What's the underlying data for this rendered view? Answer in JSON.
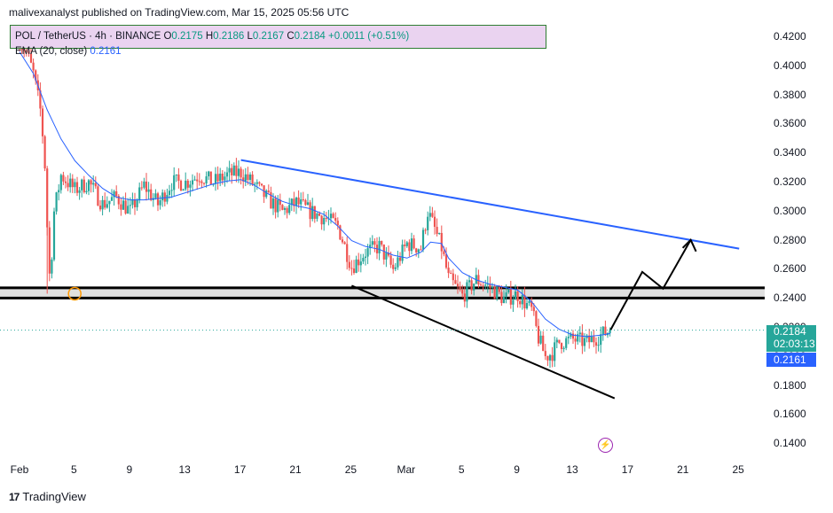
{
  "header": {
    "publisher_text": "malivexanalyst published on TradingView.com, Mar 15, 2025 05:56 UTC"
  },
  "legend": {
    "symbol": "POL / TetherUS · 4h · BINANCE",
    "open_label": "O",
    "open": "0.2175",
    "high_label": "H",
    "high": "0.2186",
    "low_label": "L",
    "low": "0.2167",
    "close_label": "C",
    "close": "0.2184",
    "change": "+0.0011 (+0.51%)",
    "ema_label": "EMA (20, close)",
    "ema_value": "0.2161"
  },
  "price_badge": {
    "price": "0.2184",
    "countdown": "02:03:13"
  },
  "ema_badge": {
    "value": "0.2161"
  },
  "branding": {
    "logo_text": "TradingView",
    "logo_mark": "17"
  },
  "icons": {
    "flash": "flash-icon",
    "logo": "tradingview-logo-icon"
  },
  "colors": {
    "up": "#26a69a",
    "down": "#ef5350",
    "ema": "#2962ff",
    "trendline_upper": "#2962ff",
    "trendline_lower": "#000000",
    "legend_bg": "#ead3f0",
    "zone": "#e0e0e0"
  },
  "chart_data": {
    "type": "candlestick",
    "title": "POL / TetherUS · 4h · BINANCE",
    "y_axis": {
      "ticks": [
        "0.4200",
        "0.4000",
        "0.3800",
        "0.3600",
        "0.3400",
        "0.3200",
        "0.3000",
        "0.2800",
        "0.2600",
        "0.2400",
        "0.2200",
        "0.2000",
        "0.1800",
        "0.1600",
        "0.1400"
      ],
      "range": [
        0.131,
        0.427
      ]
    },
    "x_axis": {
      "ticks": [
        {
          "label": "Feb",
          "day": 1
        },
        {
          "label": "5",
          "day": 5
        },
        {
          "label": "9",
          "day": 9
        },
        {
          "label": "13",
          "day": 13
        },
        {
          "label": "17",
          "day": 17
        },
        {
          "label": "21",
          "day": 21
        },
        {
          "label": "25",
          "day": 25
        },
        {
          "label": "Mar",
          "day": 29
        },
        {
          "label": "5",
          "day": 33
        },
        {
          "label": "9",
          "day": 37
        },
        {
          "label": "13",
          "day": 41
        },
        {
          "label": "17",
          "day": 45
        },
        {
          "label": "21",
          "day": 49
        },
        {
          "label": "25",
          "day": 53
        }
      ]
    },
    "price_path": [
      [
        1.0,
        0.418
      ],
      [
        1.5,
        0.41
      ],
      [
        2.0,
        0.395
      ],
      [
        2.5,
        0.37
      ],
      [
        2.8,
        0.34
      ],
      [
        3.0,
        0.29
      ],
      [
        3.2,
        0.25
      ],
      [
        3.5,
        0.3
      ],
      [
        4.0,
        0.325
      ],
      [
        5.0,
        0.315
      ],
      [
        6.0,
        0.32
      ],
      [
        7.0,
        0.305
      ],
      [
        8.0,
        0.31
      ],
      [
        9.0,
        0.3
      ],
      [
        10.0,
        0.318
      ],
      [
        11.0,
        0.305
      ],
      [
        12.0,
        0.32
      ],
      [
        13.0,
        0.32
      ],
      [
        14.0,
        0.325
      ],
      [
        15.0,
        0.32
      ],
      [
        16.0,
        0.325
      ],
      [
        17.0,
        0.327
      ],
      [
        18.0,
        0.318
      ],
      [
        19.0,
        0.308
      ],
      [
        20.0,
        0.3
      ],
      [
        21.0,
        0.306
      ],
      [
        22.0,
        0.3
      ],
      [
        23.0,
        0.296
      ],
      [
        24.0,
        0.29
      ],
      [
        25.0,
        0.262
      ],
      [
        26.0,
        0.272
      ],
      [
        27.0,
        0.276
      ],
      [
        28.0,
        0.26
      ],
      [
        29.0,
        0.278
      ],
      [
        30.0,
        0.275
      ],
      [
        30.5,
        0.3
      ],
      [
        31.0,
        0.288
      ],
      [
        31.5,
        0.275
      ],
      [
        32.0,
        0.254
      ],
      [
        33.0,
        0.242
      ],
      [
        34.0,
        0.253
      ],
      [
        35.0,
        0.248
      ],
      [
        36.0,
        0.24
      ],
      [
        37.0,
        0.243
      ],
      [
        38.0,
        0.232
      ],
      [
        38.5,
        0.213
      ],
      [
        39.0,
        0.2
      ],
      [
        39.5,
        0.203
      ],
      [
        40.0,
        0.21
      ],
      [
        41.0,
        0.212
      ],
      [
        42.0,
        0.21
      ],
      [
        43.0,
        0.215
      ],
      [
        43.7,
        0.2184
      ]
    ],
    "ema_20": [
      [
        1.0,
        0.41
      ],
      [
        2.0,
        0.395
      ],
      [
        3.0,
        0.37
      ],
      [
        4.0,
        0.35
      ],
      [
        5.0,
        0.335
      ],
      [
        6.0,
        0.325
      ],
      [
        7.0,
        0.316
      ],
      [
        8.0,
        0.31
      ],
      [
        9.0,
        0.308
      ],
      [
        10.0,
        0.308
      ],
      [
        11.0,
        0.309
      ],
      [
        12.0,
        0.31
      ],
      [
        13.0,
        0.313
      ],
      [
        14.0,
        0.316
      ],
      [
        15.0,
        0.319
      ],
      [
        16.0,
        0.321
      ],
      [
        17.0,
        0.322
      ],
      [
        18.0,
        0.318
      ],
      [
        19.0,
        0.312
      ],
      [
        20.0,
        0.307
      ],
      [
        21.0,
        0.304
      ],
      [
        22.0,
        0.302
      ],
      [
        23.0,
        0.298
      ],
      [
        24.0,
        0.29
      ],
      [
        25.0,
        0.28
      ],
      [
        26.0,
        0.276
      ],
      [
        27.0,
        0.274
      ],
      [
        28.0,
        0.27
      ],
      [
        29.0,
        0.268
      ],
      [
        30.0,
        0.272
      ],
      [
        30.7,
        0.279
      ],
      [
        31.5,
        0.278
      ],
      [
        32.0,
        0.268
      ],
      [
        33.0,
        0.258
      ],
      [
        34.0,
        0.253
      ],
      [
        35.0,
        0.25
      ],
      [
        36.0,
        0.248
      ],
      [
        37.0,
        0.246
      ],
      [
        38.0,
        0.238
      ],
      [
        39.0,
        0.226
      ],
      [
        40.0,
        0.219
      ],
      [
        41.0,
        0.215
      ],
      [
        42.0,
        0.214
      ],
      [
        43.0,
        0.215
      ],
      [
        43.7,
        0.2161
      ]
    ],
    "support_zone": {
      "top": 0.2475,
      "bottom": 0.2405
    },
    "trendlines": [
      {
        "name": "upper",
        "color": "#2962ff",
        "from": [
          17.0,
          0.3355
        ],
        "to": [
          53.0,
          0.2745
        ]
      },
      {
        "name": "lower",
        "color": "#000000",
        "from": [
          25.0,
          0.249
        ],
        "to": [
          44.0,
          0.1715
        ]
      }
    ],
    "projection_path": [
      [
        43.7,
        0.2184
      ],
      [
        46.0,
        0.2585
      ],
      [
        47.5,
        0.247
      ],
      [
        49.5,
        0.2805
      ]
    ],
    "marker": {
      "day": 3.0,
      "price": 0.2435
    },
    "last_price": 0.2184,
    "ema_last": 0.2161
  }
}
